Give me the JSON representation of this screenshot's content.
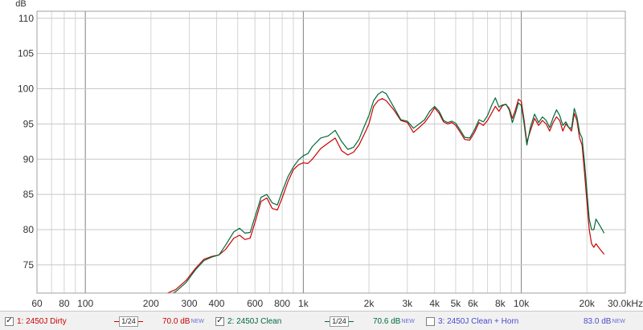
{
  "chart_data": {
    "type": "line",
    "ylabel": "dB",
    "ylim": [
      71,
      111
    ],
    "y_ticks": [
      "75",
      "80",
      "85",
      "90",
      "95",
      "100",
      "105",
      "110"
    ],
    "x_scale": "log",
    "xlim": [
      60,
      30000
    ],
    "x_ticks": [
      {
        "v": 60,
        "label": "60"
      },
      {
        "v": 80,
        "label": "80"
      },
      {
        "v": 100,
        "label": "100"
      },
      {
        "v": 200,
        "label": "200"
      },
      {
        "v": 300,
        "label": "300"
      },
      {
        "v": 400,
        "label": "400"
      },
      {
        "v": 600,
        "label": "600"
      },
      {
        "v": 800,
        "label": "800"
      },
      {
        "v": 1000,
        "label": "1k"
      },
      {
        "v": 2000,
        "label": "2k"
      },
      {
        "v": 3000,
        "label": "3k"
      },
      {
        "v": 4000,
        "label": "4k"
      },
      {
        "v": 5000,
        "label": "5k"
      },
      {
        "v": 6000,
        "label": "6k"
      },
      {
        "v": 8000,
        "label": "8k"
      },
      {
        "v": 10000,
        "label": "10k"
      },
      {
        "v": 20000,
        "label": "20k"
      },
      {
        "v": 30000,
        "label": "30.0kHz"
      }
    ],
    "grid": true,
    "series": [
      {
        "name": "1: 2450J Dirty",
        "color": "#cc0000",
        "points": [
          [
            230,
            70.8
          ],
          [
            260,
            71.5
          ],
          [
            290,
            72.8
          ],
          [
            320,
            74.5
          ],
          [
            350,
            75.8
          ],
          [
            380,
            76.2
          ],
          [
            410,
            76.4
          ],
          [
            440,
            77.2
          ],
          [
            480,
            78.8
          ],
          [
            510,
            79.2
          ],
          [
            540,
            78.6
          ],
          [
            570,
            78.8
          ],
          [
            600,
            81.0
          ],
          [
            640,
            84.0
          ],
          [
            680,
            84.5
          ],
          [
            720,
            83.0
          ],
          [
            760,
            82.8
          ],
          [
            800,
            84.5
          ],
          [
            850,
            86.8
          ],
          [
            900,
            88.5
          ],
          [
            950,
            89.2
          ],
          [
            1000,
            89.5
          ],
          [
            1050,
            89.4
          ],
          [
            1100,
            90.0
          ],
          [
            1200,
            91.5
          ],
          [
            1300,
            92.3
          ],
          [
            1400,
            93.0
          ],
          [
            1500,
            91.2
          ],
          [
            1600,
            90.6
          ],
          [
            1700,
            91.0
          ],
          [
            1800,
            92.0
          ],
          [
            1900,
            93.5
          ],
          [
            2000,
            95.0
          ],
          [
            2100,
            97.5
          ],
          [
            2200,
            98.3
          ],
          [
            2300,
            98.6
          ],
          [
            2400,
            98.3
          ],
          [
            2600,
            97.0
          ],
          [
            2800,
            95.5
          ],
          [
            3000,
            95.2
          ],
          [
            3200,
            93.8
          ],
          [
            3400,
            94.5
          ],
          [
            3600,
            95.2
          ],
          [
            3800,
            96.2
          ],
          [
            4000,
            97.3
          ],
          [
            4200,
            96.5
          ],
          [
            4400,
            95.3
          ],
          [
            4600,
            95.0
          ],
          [
            4800,
            95.2
          ],
          [
            5000,
            94.8
          ],
          [
            5200,
            94.0
          ],
          [
            5500,
            92.8
          ],
          [
            5800,
            92.7
          ],
          [
            6100,
            93.8
          ],
          [
            6400,
            95.2
          ],
          [
            6700,
            94.8
          ],
          [
            7000,
            95.5
          ],
          [
            7300,
            96.5
          ],
          [
            7600,
            97.5
          ],
          [
            7900,
            96.8
          ],
          [
            8200,
            97.6
          ],
          [
            8500,
            97.8
          ],
          [
            8800,
            97.2
          ],
          [
            9100,
            95.8
          ],
          [
            9400,
            97.0
          ],
          [
            9700,
            98.5
          ],
          [
            10000,
            98.2
          ],
          [
            10300,
            95.5
          ],
          [
            10600,
            92.4
          ],
          [
            11000,
            94.0
          ],
          [
            11500,
            95.8
          ],
          [
            12000,
            94.8
          ],
          [
            12500,
            95.5
          ],
          [
            13000,
            95.0
          ],
          [
            13500,
            94.0
          ],
          [
            14000,
            95.2
          ],
          [
            14500,
            96.0
          ],
          [
            15000,
            95.5
          ],
          [
            15500,
            94.0
          ],
          [
            16000,
            95.0
          ],
          [
            16500,
            94.5
          ],
          [
            17000,
            94.0
          ],
          [
            17500,
            96.5
          ],
          [
            18000,
            95.5
          ],
          [
            18500,
            93.0
          ],
          [
            19000,
            92.0
          ],
          [
            19500,
            88.0
          ],
          [
            20000,
            84.0
          ],
          [
            20500,
            80.0
          ],
          [
            21000,
            78.0
          ],
          [
            21500,
            77.5
          ],
          [
            22000,
            78.0
          ],
          [
            23000,
            77.2
          ],
          [
            24000,
            76.5
          ]
        ]
      },
      {
        "name": "2: 2450J Clean",
        "color": "#006a3c",
        "points": [
          [
            230,
            70.3
          ],
          [
            260,
            71.2
          ],
          [
            290,
            72.5
          ],
          [
            320,
            74.3
          ],
          [
            350,
            75.6
          ],
          [
            380,
            76.1
          ],
          [
            410,
            76.4
          ],
          [
            440,
            77.8
          ],
          [
            480,
            79.7
          ],
          [
            510,
            80.2
          ],
          [
            540,
            79.5
          ],
          [
            570,
            79.6
          ],
          [
            600,
            81.8
          ],
          [
            640,
            84.6
          ],
          [
            680,
            85.0
          ],
          [
            720,
            83.8
          ],
          [
            760,
            83.5
          ],
          [
            800,
            85.4
          ],
          [
            850,
            87.5
          ],
          [
            900,
            88.9
          ],
          [
            950,
            89.9
          ],
          [
            1000,
            90.5
          ],
          [
            1050,
            90.8
          ],
          [
            1100,
            91.8
          ],
          [
            1200,
            93.0
          ],
          [
            1300,
            93.3
          ],
          [
            1400,
            94.1
          ],
          [
            1500,
            92.5
          ],
          [
            1600,
            91.4
          ],
          [
            1700,
            91.7
          ],
          [
            1800,
            92.8
          ],
          [
            1900,
            94.6
          ],
          [
            2000,
            96.2
          ],
          [
            2100,
            98.3
          ],
          [
            2200,
            99.2
          ],
          [
            2300,
            99.6
          ],
          [
            2400,
            99.3
          ],
          [
            2600,
            97.4
          ],
          [
            2800,
            95.6
          ],
          [
            3000,
            95.4
          ],
          [
            3200,
            94.4
          ],
          [
            3400,
            95.0
          ],
          [
            3600,
            95.6
          ],
          [
            3800,
            96.8
          ],
          [
            4000,
            97.5
          ],
          [
            4200,
            96.8
          ],
          [
            4400,
            95.5
          ],
          [
            4600,
            95.2
          ],
          [
            4800,
            95.4
          ],
          [
            5000,
            95.1
          ],
          [
            5200,
            94.3
          ],
          [
            5500,
            93.1
          ],
          [
            5800,
            93.0
          ],
          [
            6100,
            94.2
          ],
          [
            6400,
            95.6
          ],
          [
            6700,
            95.3
          ],
          [
            7000,
            96.2
          ],
          [
            7300,
            97.6
          ],
          [
            7600,
            98.7
          ],
          [
            7900,
            97.4
          ],
          [
            8200,
            97.7
          ],
          [
            8500,
            97.8
          ],
          [
            8800,
            97.0
          ],
          [
            9100,
            95.2
          ],
          [
            9400,
            96.5
          ],
          [
            9700,
            98.0
          ],
          [
            10000,
            97.6
          ],
          [
            10300,
            95.0
          ],
          [
            10600,
            92.0
          ],
          [
            11000,
            94.5
          ],
          [
            11500,
            96.4
          ],
          [
            12000,
            95.2
          ],
          [
            12500,
            96.0
          ],
          [
            13000,
            95.5
          ],
          [
            13500,
            94.5
          ],
          [
            14000,
            95.9
          ],
          [
            14500,
            97.0
          ],
          [
            15000,
            96.2
          ],
          [
            15500,
            94.8
          ],
          [
            16000,
            95.3
          ],
          [
            16500,
            94.5
          ],
          [
            17000,
            94.4
          ],
          [
            17500,
            97.2
          ],
          [
            18000,
            96.0
          ],
          [
            18500,
            93.8
          ],
          [
            19000,
            93.0
          ],
          [
            19500,
            89.5
          ],
          [
            20000,
            85.5
          ],
          [
            20500,
            81.5
          ],
          [
            21000,
            80.0
          ],
          [
            21500,
            80.0
          ],
          [
            22000,
            81.5
          ],
          [
            23000,
            80.5
          ],
          [
            24000,
            79.5
          ]
        ]
      }
    ]
  },
  "legend": {
    "items": [
      {
        "checked": "✓",
        "name": "1: 2450J Dirty",
        "smoothing": "1/24",
        "level": "70.0 dB",
        "level_tag": "NEW",
        "color": "#cc0000"
      },
      {
        "checked": "✓",
        "name": "2: 2450J Clean",
        "smoothing": "1/24",
        "level": "70.6 dB",
        "level_tag": "NEW",
        "color": "#006a3c"
      },
      {
        "checked": "",
        "name": "3: 2450J Clean + Horn",
        "level": "83.0 dB",
        "level_tag": "NEW",
        "color": "#4a4ad0"
      }
    ]
  }
}
